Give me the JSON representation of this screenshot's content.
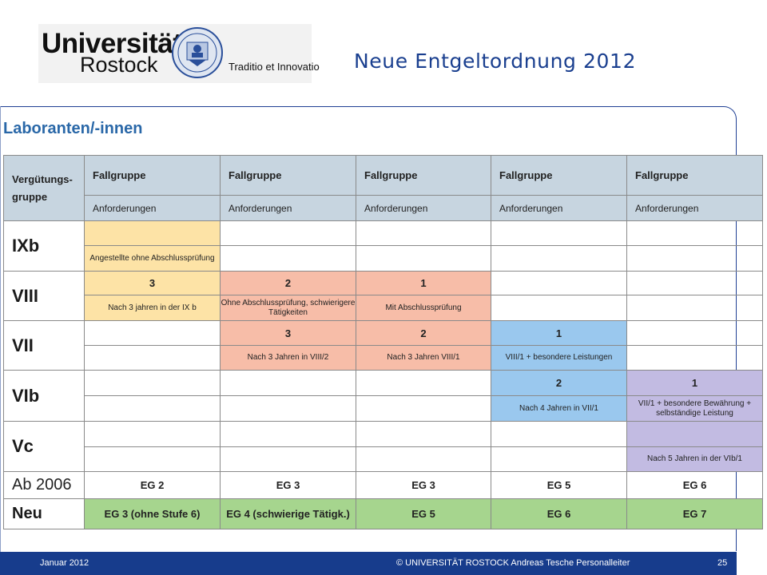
{
  "header": {
    "logo": {
      "word1": "Universität",
      "word2": "Rostock",
      "motto": "Traditio et Innovatio"
    },
    "title": "Neue Entgeltordnung 2012"
  },
  "section_heading": "Laboranten/-innen",
  "table": {
    "col0_header": "Vergütungs-\ngruppe",
    "col_header": "Fallgruppe",
    "col_sub_header": "Anforderungen",
    "rows": [
      {
        "label": "IXb",
        "cells": [
          {
            "num": "",
            "req": "Angestellte ohne Abschlussprüfung"
          },
          {
            "num": "",
            "req": ""
          },
          {
            "num": "",
            "req": ""
          },
          {
            "num": "",
            "req": ""
          },
          {
            "num": "",
            "req": ""
          }
        ]
      },
      {
        "label": "VIII",
        "cells": [
          {
            "num": "3",
            "req": "Nach 3 jahren in der IX b"
          },
          {
            "num": "2",
            "req": "Ohne Abschlussprüfung, schwierigere Tätigkeiten"
          },
          {
            "num": "1",
            "req": "Mit Abschlussprüfung"
          },
          {
            "num": "",
            "req": ""
          },
          {
            "num": "",
            "req": ""
          }
        ]
      },
      {
        "label": "VII",
        "cells": [
          {
            "num": "",
            "req": ""
          },
          {
            "num": "3",
            "req": "Nach 3 Jahren in VIII/2"
          },
          {
            "num": "2",
            "req": "Nach 3 Jahren VIII/1"
          },
          {
            "num": "1",
            "req": "VIII/1 + besondere Leistungen"
          },
          {
            "num": "",
            "req": ""
          }
        ]
      },
      {
        "label": "VIb",
        "cells": [
          {
            "num": "",
            "req": ""
          },
          {
            "num": "",
            "req": ""
          },
          {
            "num": "",
            "req": ""
          },
          {
            "num": "2",
            "req": "Nach 4 Jahren in VII/1"
          },
          {
            "num": "1",
            "req": "VII/1 + besondere Bewährung + selbständige Leistung"
          }
        ]
      },
      {
        "label": "Vc",
        "cells": [
          {
            "num": "",
            "req": ""
          },
          {
            "num": "",
            "req": ""
          },
          {
            "num": "",
            "req": ""
          },
          {
            "num": "",
            "req": ""
          },
          {
            "num": "",
            "req": "Nach 5 Jahren in der VIb/1"
          }
        ]
      }
    ],
    "ab2006": {
      "label": "Ab 2006",
      "values": [
        "EG 2",
        "EG 3",
        "EG 3",
        "EG 5",
        "EG 6"
      ]
    },
    "neu": {
      "label": "Neu",
      "values": [
        "EG 3 (ohne Stufe 6)",
        "EG 4 (schwierige Tätigk.)",
        "EG 5",
        "EG 6",
        "EG 7"
      ]
    }
  },
  "colors": {
    "yellow": "#fde3a6",
    "red": "#f7bda8",
    "blue": "#9ac8ee",
    "purple": "#c2bbe2",
    "green": "#a6d58e",
    "header": "#c7d5e0",
    "footer": "#173c8c",
    "title": "#1a3f8f"
  },
  "footer": {
    "date": "Januar 2012",
    "center": "© UNIVERSITÄT ROSTOCK  Andreas Tesche  Personalleiter",
    "page": "25"
  }
}
